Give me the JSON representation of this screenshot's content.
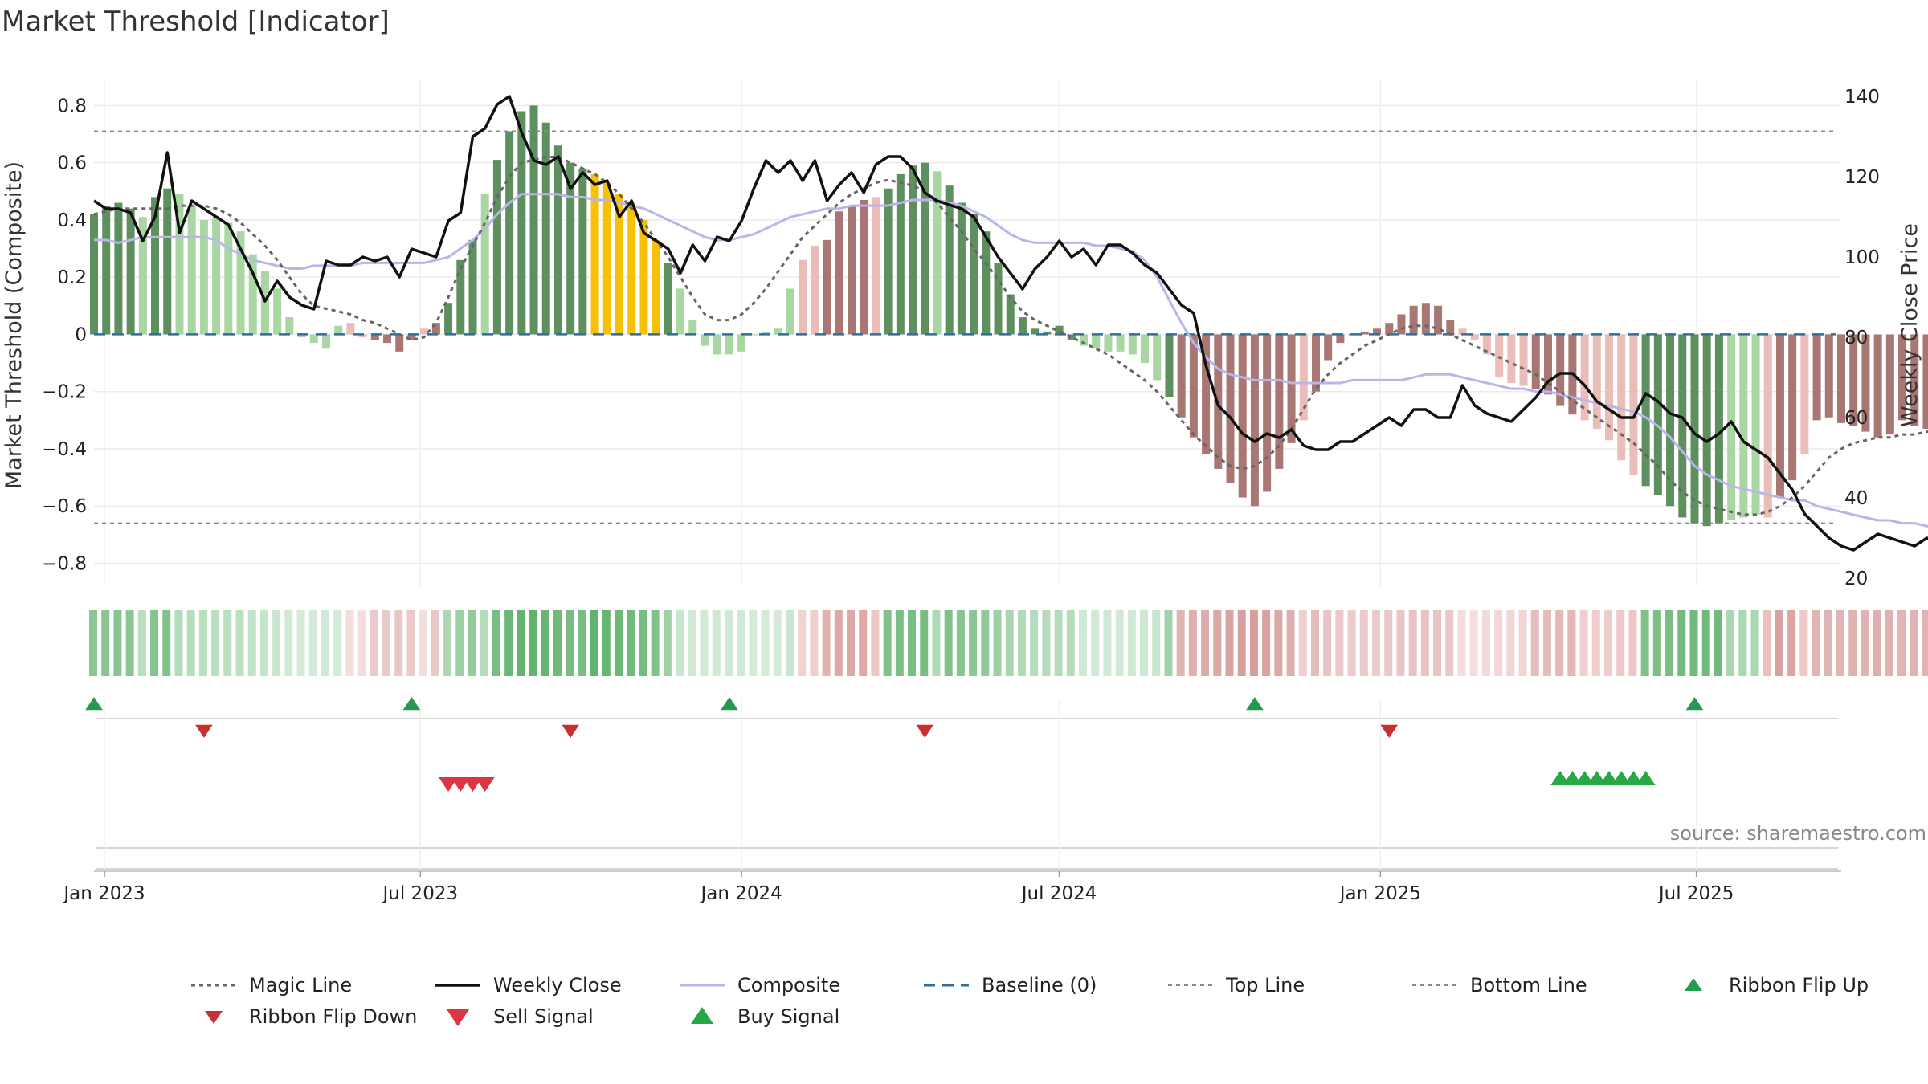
{
  "chart_data": {
    "type": "bar",
    "title": "Market Threshold [Indicator]",
    "ylabel_left": "Market Threshold (Composite)",
    "ylabel_right": "Weekly Close Price",
    "ylim_left": [
      -0.88,
      0.86
    ],
    "ylim_right": [
      18,
      142
    ],
    "y_ticks_left": [
      {
        "value": 0.8,
        "label": "0.8"
      },
      {
        "value": 0.6,
        "label": "0.6"
      },
      {
        "value": 0.4,
        "label": "0.4"
      },
      {
        "value": 0.2,
        "label": "0.2"
      },
      {
        "value": 0,
        "label": "0"
      },
      {
        "value": -0.2,
        "label": "−0.2"
      },
      {
        "value": -0.4,
        "label": "−0.4"
      },
      {
        "value": -0.6,
        "label": "−0.6"
      },
      {
        "value": -0.8,
        "label": "−0.8"
      }
    ],
    "y_ticks_right": [
      {
        "value": 140,
        "label": "140"
      },
      {
        "value": 120,
        "label": "120"
      },
      {
        "value": 100,
        "label": "100"
      },
      {
        "value": 80,
        "label": "80"
      },
      {
        "value": 60,
        "label": "60"
      },
      {
        "value": 40,
        "label": "40"
      },
      {
        "value": 20,
        "label": "20"
      }
    ],
    "x_range": [
      "2022-12-26",
      "2025-09-22"
    ],
    "x_ticks": [
      {
        "date": "2023-01-01",
        "label": "Jan 2023"
      },
      {
        "date": "2023-07-01",
        "label": "Jul 2023"
      },
      {
        "date": "2024-01-01",
        "label": "Jan 2024"
      },
      {
        "date": "2024-07-01",
        "label": "Jul 2024"
      },
      {
        "date": "2025-01-01",
        "label": "Jan 2025"
      },
      {
        "date": "2025-07-01",
        "label": "Jul 2025"
      }
    ],
    "top_line": 0.71,
    "bottom_line": -0.66,
    "start_date": "2022-12-26",
    "composite_bars": [
      0.42,
      0.45,
      0.46,
      0.44,
      0.41,
      0.48,
      0.51,
      0.49,
      0.45,
      0.4,
      0.41,
      0.39,
      0.36,
      0.28,
      0.22,
      0.16,
      0.06,
      -0.01,
      -0.03,
      -0.05,
      0.03,
      0.04,
      -0.01,
      -0.02,
      -0.03,
      -0.06,
      -0.02,
      0.02,
      0.04,
      0.11,
      0.26,
      0.33,
      0.49,
      0.61,
      0.71,
      0.78,
      0.8,
      0.74,
      0.66,
      0.6,
      0.58,
      0.56,
      0.53,
      0.49,
      0.45,
      0.4,
      0.33,
      0.25,
      0.16,
      0.05,
      -0.04,
      -0.07,
      -0.07,
      -0.06,
      0.0,
      0.01,
      0.02,
      0.16,
      0.26,
      0.31,
      0.33,
      0.43,
      0.45,
      0.47,
      0.48,
      0.51,
      0.56,
      0.59,
      0.6,
      0.57,
      0.52,
      0.46,
      0.42,
      0.36,
      0.25,
      0.14,
      0.06,
      0.02,
      0.01,
      0.03,
      -0.02,
      -0.04,
      -0.05,
      -0.06,
      -0.06,
      -0.07,
      -0.1,
      -0.16,
      -0.22,
      -0.29,
      -0.36,
      -0.42,
      -0.47,
      -0.52,
      -0.57,
      -0.6,
      -0.55,
      -0.47,
      -0.38,
      -0.3,
      -0.2,
      -0.09,
      -0.03,
      0.0,
      0.01,
      0.02,
      0.04,
      0.07,
      0.1,
      0.11,
      0.1,
      0.05,
      0.02,
      -0.02,
      -0.07,
      -0.15,
      -0.17,
      -0.18,
      -0.19,
      -0.21,
      -0.25,
      -0.28,
      -0.3,
      -0.33,
      -0.37,
      -0.44,
      -0.49,
      -0.53,
      -0.56,
      -0.6,
      -0.64,
      -0.66,
      -0.67,
      -0.66,
      -0.65,
      -0.64,
      -0.63,
      -0.64,
      -0.57,
      -0.51,
      -0.42,
      -0.3,
      -0.29,
      -0.31,
      -0.32,
      -0.34,
      -0.36,
      -0.35,
      -0.3,
      -0.32,
      -0.33,
      -0.33
    ],
    "bar_state": "ddddlddllllllllllllllmmrrrrmrdddlddddddddyyyyyydllllllllllmmrrrrmddddldddddddddddllllllldrrrrrrrrrrmrrrrrrrrrrrrmmmmmmrrrrmmmmmdddddddlllmrrmrrrrrrrrrrrrrrryyyyyyymmmrrrrrmmmr",
    "weekly_close": [
      114,
      112,
      112,
      111,
      104,
      110,
      126,
      106,
      114,
      112,
      110,
      108,
      102,
      96,
      89,
      94,
      90,
      88,
      87,
      99,
      98,
      98,
      100,
      99,
      100,
      95,
      102,
      101,
      100,
      109,
      111,
      130,
      132,
      138,
      140,
      131,
      124,
      123,
      125,
      117,
      121,
      118,
      119,
      110,
      114,
      106,
      104,
      102,
      96,
      103,
      99,
      105,
      104,
      109,
      117,
      124,
      121,
      124,
      119,
      124,
      114,
      118,
      121,
      116,
      123,
      125,
      125,
      122,
      116,
      114,
      113,
      112,
      110,
      105,
      100,
      96,
      92,
      97,
      100,
      104,
      100,
      102,
      98,
      103,
      103,
      101,
      98,
      96,
      92,
      88,
      86,
      73,
      63,
      60,
      56,
      54,
      56,
      55,
      57,
      53,
      52,
      52,
      54,
      54,
      56,
      58,
      60,
      58,
      62,
      62,
      60,
      60,
      68,
      63,
      61,
      60,
      59,
      62,
      65,
      69,
      71,
      71,
      68,
      64,
      62,
      60,
      60,
      66,
      64,
      61,
      60,
      56,
      54,
      56,
      59,
      54,
      52,
      50,
      46,
      42,
      36,
      33,
      30,
      28,
      27,
      29,
      31,
      30,
      29,
      28,
      30,
      29,
      29,
      28,
      30,
      28,
      29,
      24,
      23,
      23,
      22,
      22,
      22,
      23,
      24,
      24,
      25,
      24,
      23
    ],
    "composite_line": [
      0.33,
      0.33,
      0.32,
      0.33,
      0.34,
      0.34,
      0.34,
      0.34,
      0.34,
      0.34,
      0.33,
      0.3,
      0.28,
      0.26,
      0.25,
      0.24,
      0.23,
      0.23,
      0.24,
      0.24,
      0.24,
      0.24,
      0.25,
      0.25,
      0.25,
      0.25,
      0.25,
      0.25,
      0.26,
      0.27,
      0.3,
      0.33,
      0.37,
      0.42,
      0.46,
      0.49,
      0.49,
      0.49,
      0.49,
      0.48,
      0.48,
      0.47,
      0.47,
      0.46,
      0.45,
      0.44,
      0.42,
      0.4,
      0.38,
      0.36,
      0.34,
      0.33,
      0.33,
      0.34,
      0.35,
      0.37,
      0.39,
      0.41,
      0.42,
      0.43,
      0.44,
      0.44,
      0.45,
      0.45,
      0.45,
      0.45,
      0.46,
      0.47,
      0.47,
      0.47,
      0.46,
      0.45,
      0.43,
      0.41,
      0.38,
      0.35,
      0.33,
      0.32,
      0.32,
      0.32,
      0.32,
      0.32,
      0.31,
      0.31,
      0.3,
      0.29,
      0.26,
      0.2,
      0.12,
      0.04,
      -0.03,
      -0.08,
      -0.12,
      -0.14,
      -0.15,
      -0.16,
      -0.16,
      -0.16,
      -0.17,
      -0.17,
      -0.17,
      -0.17,
      -0.17,
      -0.16,
      -0.16,
      -0.16,
      -0.16,
      -0.16,
      -0.15,
      -0.14,
      -0.14,
      -0.14,
      -0.15,
      -0.16,
      -0.17,
      -0.18,
      -0.19,
      -0.19,
      -0.2,
      -0.2,
      -0.21,
      -0.22,
      -0.23,
      -0.24,
      -0.25,
      -0.26,
      -0.27,
      -0.29,
      -0.32,
      -0.36,
      -0.41,
      -0.46,
      -0.49,
      -0.51,
      -0.53,
      -0.54,
      -0.55,
      -0.56,
      -0.57,
      -0.58,
      -0.58,
      -0.6,
      -0.61,
      -0.62,
      -0.63,
      -0.64,
      -0.65,
      -0.65,
      -0.66,
      -0.66,
      -0.67,
      -0.67,
      -0.68
    ],
    "magic_line": [
      0.42,
      0.43,
      0.44,
      0.44,
      0.44,
      0.44,
      0.44,
      0.45,
      0.45,
      0.45,
      0.44,
      0.42,
      0.39,
      0.35,
      0.31,
      0.26,
      0.2,
      0.14,
      0.1,
      0.09,
      0.08,
      0.07,
      0.05,
      0.04,
      0.02,
      0.0,
      -0.02,
      -0.01,
      0.04,
      0.13,
      0.23,
      0.31,
      0.39,
      0.48,
      0.55,
      0.6,
      0.61,
      0.62,
      0.62,
      0.6,
      0.58,
      0.56,
      0.53,
      0.49,
      0.44,
      0.39,
      0.33,
      0.27,
      0.2,
      0.13,
      0.07,
      0.05,
      0.05,
      0.07,
      0.11,
      0.16,
      0.22,
      0.28,
      0.34,
      0.38,
      0.42,
      0.46,
      0.49,
      0.51,
      0.53,
      0.54,
      0.53,
      0.52,
      0.5,
      0.46,
      0.41,
      0.36,
      0.3,
      0.25,
      0.19,
      0.13,
      0.08,
      0.05,
      0.03,
      0.01,
      -0.01,
      -0.03,
      -0.05,
      -0.07,
      -0.1,
      -0.13,
      -0.16,
      -0.2,
      -0.25,
      -0.3,
      -0.35,
      -0.39,
      -0.43,
      -0.46,
      -0.47,
      -0.46,
      -0.43,
      -0.39,
      -0.33,
      -0.26,
      -0.19,
      -0.14,
      -0.1,
      -0.07,
      -0.04,
      -0.02,
      0.0,
      0.02,
      0.03,
      0.03,
      0.02,
      0.0,
      -0.02,
      -0.04,
      -0.06,
      -0.08,
      -0.1,
      -0.12,
      -0.14,
      -0.17,
      -0.2,
      -0.23,
      -0.26,
      -0.29,
      -0.32,
      -0.35,
      -0.38,
      -0.42,
      -0.46,
      -0.51,
      -0.55,
      -0.58,
      -0.6,
      -0.61,
      -0.62,
      -0.63,
      -0.63,
      -0.62,
      -0.6,
      -0.57,
      -0.53,
      -0.48,
      -0.43,
      -0.4,
      -0.38,
      -0.37,
      -0.36,
      -0.36,
      -0.35,
      -0.35,
      -0.34,
      -0.34
    ],
    "ribbon_flip_up": [
      "2022-12-26",
      "2023-06-26",
      "2023-12-25",
      "2024-10-21",
      "2025-06-30"
    ],
    "ribbon_flip_down": [
      "2023-02-27",
      "2023-09-25",
      "2024-04-15",
      "2025-01-06"
    ],
    "sell_signals": [
      "2023-07-17",
      "2023-07-24",
      "2023-07-31",
      "2023-08-07"
    ],
    "buy_signals": [
      "2025-04-14",
      "2025-04-21",
      "2025-04-28",
      "2025-05-05",
      "2025-05-12",
      "2025-05-19",
      "2025-05-26",
      "2025-06-02"
    ],
    "legend": [
      {
        "key": "magic",
        "label": "Magic Line"
      },
      {
        "key": "close",
        "label": "Weekly Close"
      },
      {
        "key": "composite",
        "label": "Composite"
      },
      {
        "key": "baseline",
        "label": "Baseline (0)"
      },
      {
        "key": "top",
        "label": "Top Line"
      },
      {
        "key": "bottom",
        "label": "Bottom Line"
      },
      {
        "key": "flipup",
        "label": "Ribbon Flip Up"
      },
      {
        "key": "flipdown",
        "label": "Ribbon Flip Down"
      },
      {
        "key": "sell",
        "label": "Sell Signal"
      },
      {
        "key": "buy",
        "label": "Buy Signal"
      }
    ],
    "legend_placement": "bottom",
    "source": "source: sharemaestro.com",
    "grid": true,
    "colors": {
      "bar_dark_green": "#5e8f5e",
      "bar_light_green": "#a9d6a2",
      "bar_dark_red": "#a87773",
      "bar_light_red": "#ebbdb8",
      "bar_yellow": "#f7c107",
      "magic_line": "#666666",
      "weekly_close": "#111111",
      "composite_line": "#b9b5e8",
      "baseline": "#2f6f9e",
      "threshold_lines": "#888888",
      "flip_up": "#239a4e",
      "flip_down": "#c53030",
      "sell": "#dc3545",
      "buy": "#28a745"
    }
  }
}
